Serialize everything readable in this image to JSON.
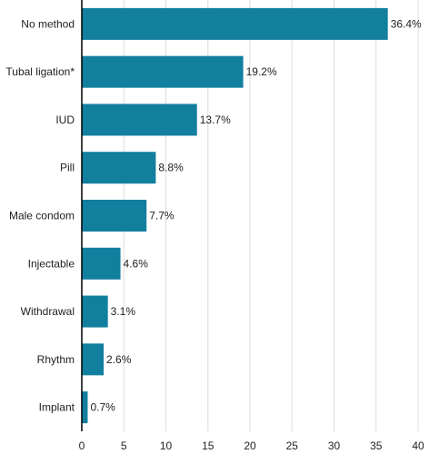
{
  "chart_data": {
    "type": "bar",
    "orientation": "horizontal",
    "title": "",
    "xlabel": "",
    "ylabel": "",
    "categories": [
      "No method",
      "Tubal ligation*",
      "IUD",
      "Pill",
      "Male condom",
      "Injectable",
      "Withdrawal",
      "Rhythm",
      "Implant"
    ],
    "values": [
      36.4,
      19.2,
      13.7,
      8.8,
      7.7,
      4.6,
      3.1,
      2.6,
      0.7
    ],
    "data_labels": [
      "36.4%",
      "19.2%",
      "13.7%",
      "8.8%",
      "7.7%",
      "4.6%",
      "3.1%",
      "2.6%",
      "0.7%"
    ],
    "xlim": [
      0,
      40
    ],
    "x_ticks": [
      0,
      5,
      10,
      15,
      20,
      25,
      30,
      35,
      40
    ],
    "x_tick_labels": [
      "0",
      "5",
      "10",
      "15",
      "20",
      "25",
      "30",
      "35",
      "40"
    ],
    "grid": "vertical",
    "bar_color": "#137f9e",
    "grid_color": "#dddddd",
    "axis_color": "#000000"
  }
}
